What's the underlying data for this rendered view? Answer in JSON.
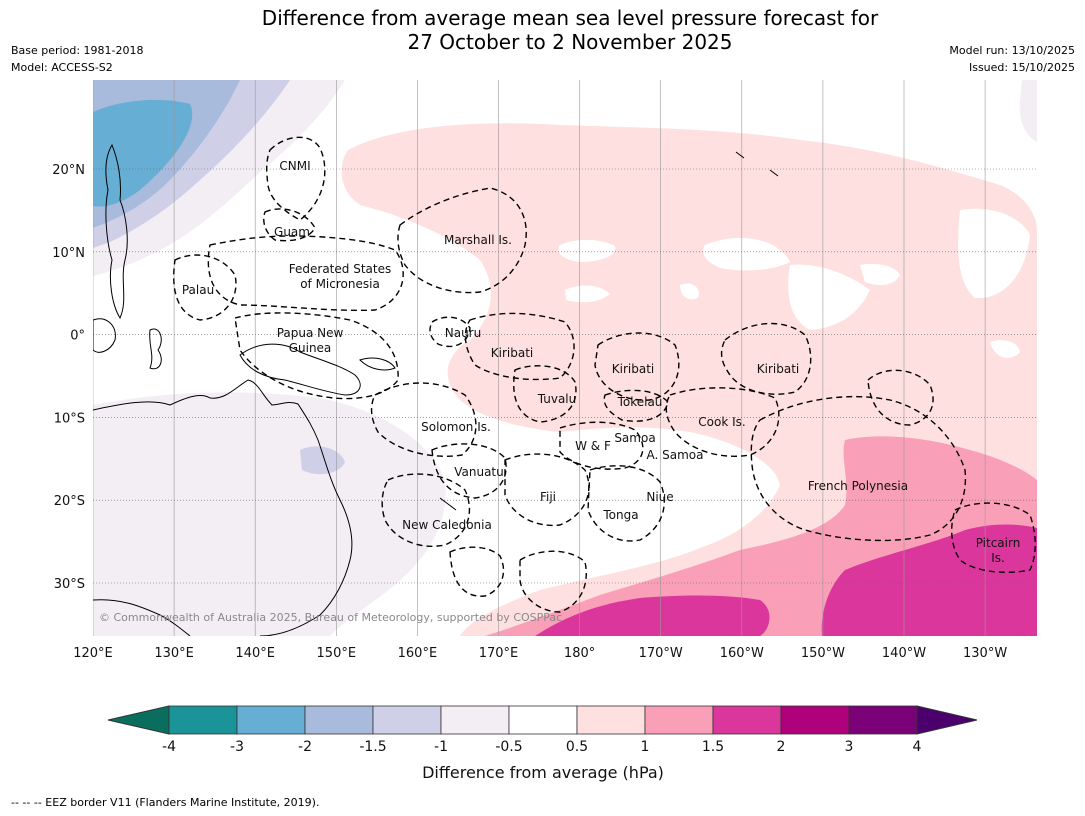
{
  "title": {
    "line1": "Difference from average mean sea level pressure forecast for",
    "line2": "27 October to 2 November 2025"
  },
  "meta": {
    "base_period": "Base period: 1981-2018",
    "model": "Model: ACCESS-S2",
    "model_run": "Model run: 13/10/2025",
    "issued": "Issued: 15/10/2025"
  },
  "map": {
    "lon_labels": [
      "120°E",
      "130°E",
      "140°E",
      "150°E",
      "160°E",
      "170°E",
      "180°",
      "170°W",
      "160°W",
      "150°W",
      "140°W",
      "130°W"
    ],
    "lat_labels": [
      "20°N",
      "10°N",
      "0°",
      "10°S",
      "20°S",
      "30°S"
    ],
    "region_labels": {
      "cnmi": "CNMI",
      "guam": "Guam",
      "marshall": "Marshall Is.",
      "fsm_line1": "Federated States",
      "fsm_line2": "of Micronesia",
      "palau": "Palau",
      "png_line1": "Papua New",
      "png_line2": "Guinea",
      "nauru": "Nauru",
      "kiribati_west": "Kiribati",
      "kiribati_central": "Kiribati",
      "kiribati_east": "Kiribati",
      "tuvalu": "Tuvalu",
      "tokelau": "Tokelau",
      "cook": "Cook Is.",
      "solomon": "Solomon Is.",
      "wf": "W & F",
      "samoa": "Samoa",
      "amsamoa": "A. Samoa",
      "vanuatu": "Vanuatu",
      "fiji": "Fiji",
      "niue": "Niue",
      "tonga": "Tonga",
      "french_poly": "French Polynesia",
      "new_caledonia": "New Caledonia",
      "pitcairn_line1": "Pitcairn",
      "pitcairn_line2": "Is."
    },
    "copyright": "© Commonwealth of Australia 2025, Bureau of Meteorology, supported by COSPPac"
  },
  "colorbar": {
    "ticks": [
      "-4",
      "-3",
      "-2",
      "-1.5",
      "-1",
      "-0.5",
      "0.5",
      "1",
      "1.5",
      "2",
      "3",
      "4"
    ],
    "colors": [
      "#1a9399",
      "#67aed4",
      "#a8bbdc",
      "#cfd0e8",
      "#f3edf4",
      "#ffffff",
      "#fde0df",
      "#f99fb8",
      "#db369b",
      "#b0017c",
      "#7a0177"
    ],
    "under_color": "#0a6e5e",
    "over_color": "#4b006e",
    "label": "Difference from average (hPa)"
  },
  "footer": "--  --  -- EEZ border V11 (Flanders Marine Institute, 2019)."
}
